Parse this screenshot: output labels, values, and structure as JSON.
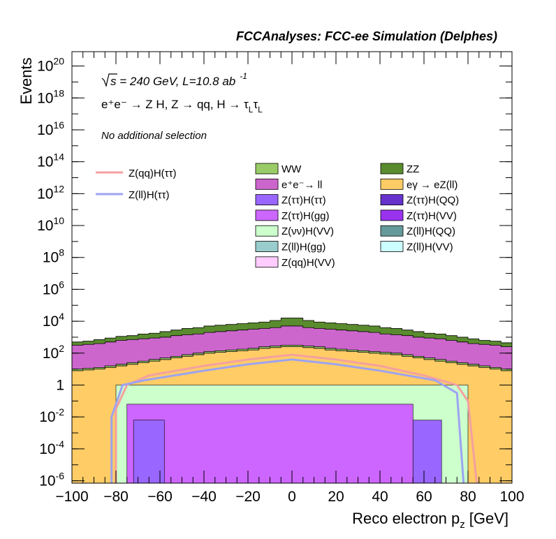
{
  "chart_data": {
    "type": "area",
    "title": "FCCAnalyses: FCC-ee Simulation (Delphes)",
    "xlabel": "Reco electron p",
    "xlabel_sub": "z",
    "xlabel_unit": "[GeV]",
    "ylabel": "Events",
    "x_range": [
      -100,
      100
    ],
    "y_range_log10": [
      -6.15,
      20.9
    ],
    "y_scale": "log",
    "x_ticks": [
      "−100",
      "−80",
      "−60",
      "−40",
      "−20",
      "0",
      "20",
      "40",
      "60",
      "80",
      "100"
    ],
    "x_tick_values": [
      -100,
      -80,
      -60,
      -40,
      -20,
      0,
      20,
      40,
      60,
      80,
      100
    ],
    "y_ticks": [
      {
        "mant": "10",
        "exp": "20",
        "log": 20
      },
      {
        "mant": "10",
        "exp": "18",
        "log": 18
      },
      {
        "mant": "10",
        "exp": "16",
        "log": 16
      },
      {
        "mant": "10",
        "exp": "14",
        "log": 14
      },
      {
        "mant": "10",
        "exp": "12",
        "log": 12
      },
      {
        "mant": "10",
        "exp": "10",
        "log": 10
      },
      {
        "mant": "10",
        "exp": "8",
        "log": 8
      },
      {
        "mant": "10",
        "exp": "6",
        "log": 6
      },
      {
        "mant": "10",
        "exp": "4",
        "log": 4
      },
      {
        "mant": "10",
        "exp": "2",
        "log": 2
      },
      {
        "mant": "1",
        "exp": "",
        "log": 0
      },
      {
        "mant": "10",
        "exp": "-2",
        "log": -2
      },
      {
        "mant": "10",
        "exp": "-4",
        "log": -4
      },
      {
        "mant": "10",
        "exp": "-6",
        "log": -6
      }
    ],
    "annotations": {
      "energy_text": "s = 240 GeV, L=10.8 ab",
      "energy_sup": "-1",
      "process_text": "e⁺e⁻ → Z H, Z → qq, H → τ",
      "process_sub1": "L",
      "process_tau2": "τ",
      "process_sub2": "L",
      "selection": "No additional selection"
    },
    "signals": [
      {
        "name": "Z(qq)H(ττ)",
        "color": "#f4a0a0"
      },
      {
        "name": "Z(ll)H(ττ)",
        "color": "#9da3f2"
      }
    ],
    "backgrounds_legend": [
      {
        "name": "WW",
        "color": "#99cc66"
      },
      {
        "name": "ZZ",
        "color": "#5a8b2e"
      },
      {
        "name": "e⁺e⁻→ ll",
        "color": "#cc66cc"
      },
      {
        "name": "eγ → eZ(ll)",
        "color": "#ffcc66"
      },
      {
        "name": "Z(ττ)H(ττ)",
        "color": "#9966ff"
      },
      {
        "name": "Z(ττ)H(QQ)",
        "color": "#6633cc"
      },
      {
        "name": "Z(ττ)H(gg)",
        "color": "#cc66ff"
      },
      {
        "name": "Z(ττ)H(VV)",
        "color": "#9933ee"
      },
      {
        "name": "Z(νν)H(VV)",
        "color": "#ccffcc"
      },
      {
        "name": "Z(ll)H(QQ)",
        "color": "#669999"
      },
      {
        "name": "Z(ll)H(gg)",
        "color": "#99cccc"
      },
      {
        "name": "Z(ll)H(VV)",
        "color": "#ccffff"
      },
      {
        "name": "Z(qq)H(VV)",
        "color": "#ffccff"
      }
    ],
    "stack_log10_bounds": {
      "x_edges": [
        -100,
        -95,
        -90,
        -85,
        -80,
        -75,
        -70,
        -65,
        -60,
        -55,
        -50,
        -45,
        -40,
        -35,
        -30,
        -25,
        -20,
        -15,
        -10,
        -5,
        0,
        5,
        10,
        15,
        20,
        25,
        30,
        35,
        40,
        45,
        50,
        55,
        60,
        65,
        70,
        75,
        80,
        85,
        90,
        95,
        100
      ],
      "layers": [
        {
          "name": "eγ → eZ(ll)",
          "color": "#ffcc66",
          "top": [
            0.9,
            0.95,
            1.0,
            1.1,
            1.2,
            1.3,
            1.4,
            1.5,
            1.6,
            1.7,
            1.8,
            1.9,
            2.0,
            2.05,
            2.1,
            2.15,
            2.2,
            2.3,
            2.35,
            2.4,
            2.4,
            2.35,
            2.3,
            2.2,
            2.15,
            2.1,
            2.05,
            2.0,
            1.95,
            1.9,
            1.8,
            1.7,
            1.6,
            1.5,
            1.4,
            1.3,
            1.2,
            1.1,
            1.0,
            0.9
          ]
        },
        {
          "name": "WW",
          "color": "#99cc66",
          "top": [
            1.0,
            1.05,
            1.1,
            1.2,
            1.3,
            1.4,
            1.5,
            1.6,
            1.7,
            1.8,
            1.9,
            2.0,
            2.1,
            2.15,
            2.2,
            2.25,
            2.3,
            2.4,
            2.45,
            2.5,
            2.5,
            2.45,
            2.4,
            2.3,
            2.25,
            2.2,
            2.15,
            2.1,
            2.05,
            2.0,
            1.9,
            1.8,
            1.7,
            1.6,
            1.5,
            1.4,
            1.3,
            1.2,
            1.1,
            1.0
          ]
        },
        {
          "name": "e⁺e⁻→ ll",
          "color": "#cc66cc",
          "top": [
            2.5,
            2.55,
            2.6,
            2.7,
            2.8,
            2.85,
            2.9,
            2.95,
            3.0,
            3.1,
            3.15,
            3.2,
            3.3,
            3.35,
            3.4,
            3.45,
            3.5,
            3.55,
            3.6,
            3.7,
            3.7,
            3.6,
            3.55,
            3.5,
            3.45,
            3.4,
            3.35,
            3.3,
            3.2,
            3.15,
            3.1,
            3.0,
            2.95,
            2.9,
            2.8,
            2.7,
            2.6,
            2.55,
            2.5,
            2.4
          ]
        },
        {
          "name": "ZZ",
          "color": "#5a8b2e",
          "top": [
            2.7,
            2.75,
            2.85,
            2.95,
            3.05,
            3.1,
            3.2,
            3.25,
            3.35,
            3.45,
            3.55,
            3.6,
            3.7,
            3.75,
            3.8,
            3.85,
            3.9,
            3.95,
            4.05,
            4.2,
            4.2,
            4.05,
            3.95,
            3.9,
            3.85,
            3.8,
            3.75,
            3.7,
            3.6,
            3.55,
            3.45,
            3.35,
            3.25,
            3.2,
            3.1,
            3.0,
            2.9,
            2.8,
            2.75,
            2.65
          ]
        }
      ]
    }
  }
}
